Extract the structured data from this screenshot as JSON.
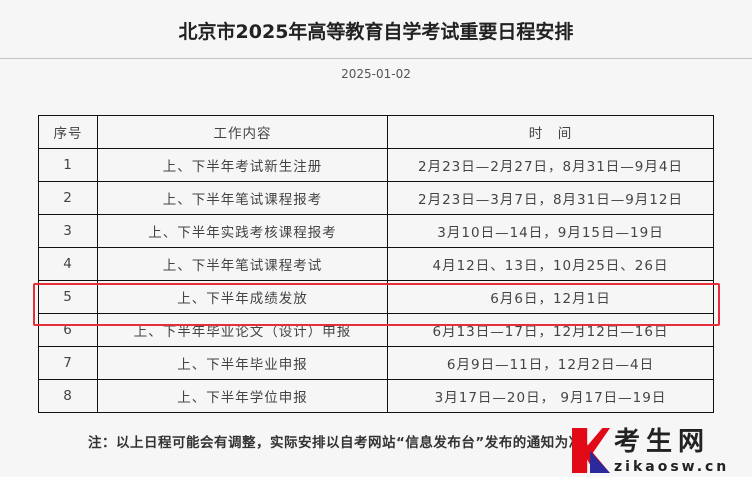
{
  "title": "北京市2025年高等教育自学考试重要日程安排",
  "date": "2025-01-02",
  "table": {
    "headers": [
      "序号",
      "工作内容",
      "时　间"
    ],
    "rows": [
      [
        "1",
        "上、下半年考试新生注册",
        "2月23日—2月27日，8月31日—9月4日"
      ],
      [
        "2",
        "上、下半年笔试课程报考",
        "2月23日—3月7日，8月31日—9月12日"
      ],
      [
        "3",
        "上、下半年实践考核课程报考",
        "3月10日—14日，9月15日—19日"
      ],
      [
        "4",
        "上、下半年笔试课程考试",
        "4月12日、13日，10月25日、26日"
      ],
      [
        "5",
        "上、下半年成绩发放",
        "6月6日，12月1日"
      ],
      [
        "6",
        "上、下半年毕业论文（设计）申报",
        "6月13日—17日，12月12日—16日"
      ],
      [
        "7",
        "上、下半年毕业申报",
        "6月9日—11日，12月2日—4日"
      ],
      [
        "8",
        "上、下半年学位申报",
        "3月17日—20日， 9月17日—19日"
      ]
    ],
    "highlighted_row": 5,
    "highlight_color": "#e62f3a"
  },
  "note": "注：以上日程可能会有调整，实际安排以自考网站“信息发布台”发布的通知为准。",
  "logo": {
    "cn": "考生网",
    "en": "zikaosw.cn"
  }
}
